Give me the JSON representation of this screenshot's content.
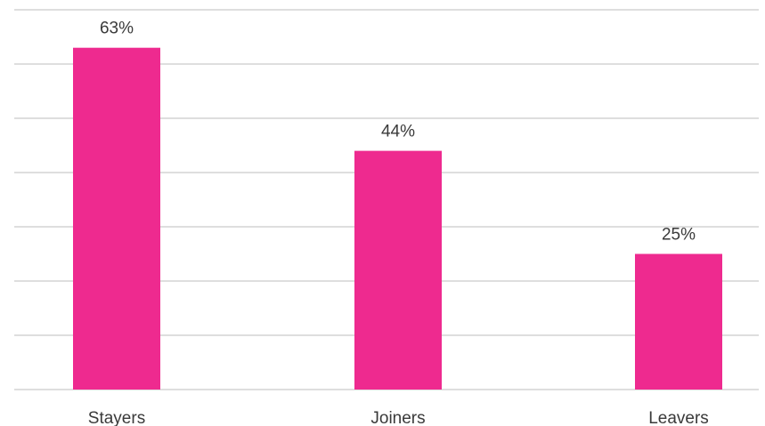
{
  "chart_data": {
    "type": "bar",
    "title": "",
    "xlabel": "",
    "ylabel": "",
    "categories": [
      "Stayers",
      "Joiners",
      "Leavers"
    ],
    "values": [
      63,
      44,
      25
    ],
    "value_labels": [
      "63%",
      "44%",
      "25%"
    ],
    "unit": "%",
    "ylim": [
      0,
      70
    ],
    "grid": true,
    "legend": "none",
    "bar_color": "#ee2a8f",
    "grid_color": "#dedede"
  }
}
